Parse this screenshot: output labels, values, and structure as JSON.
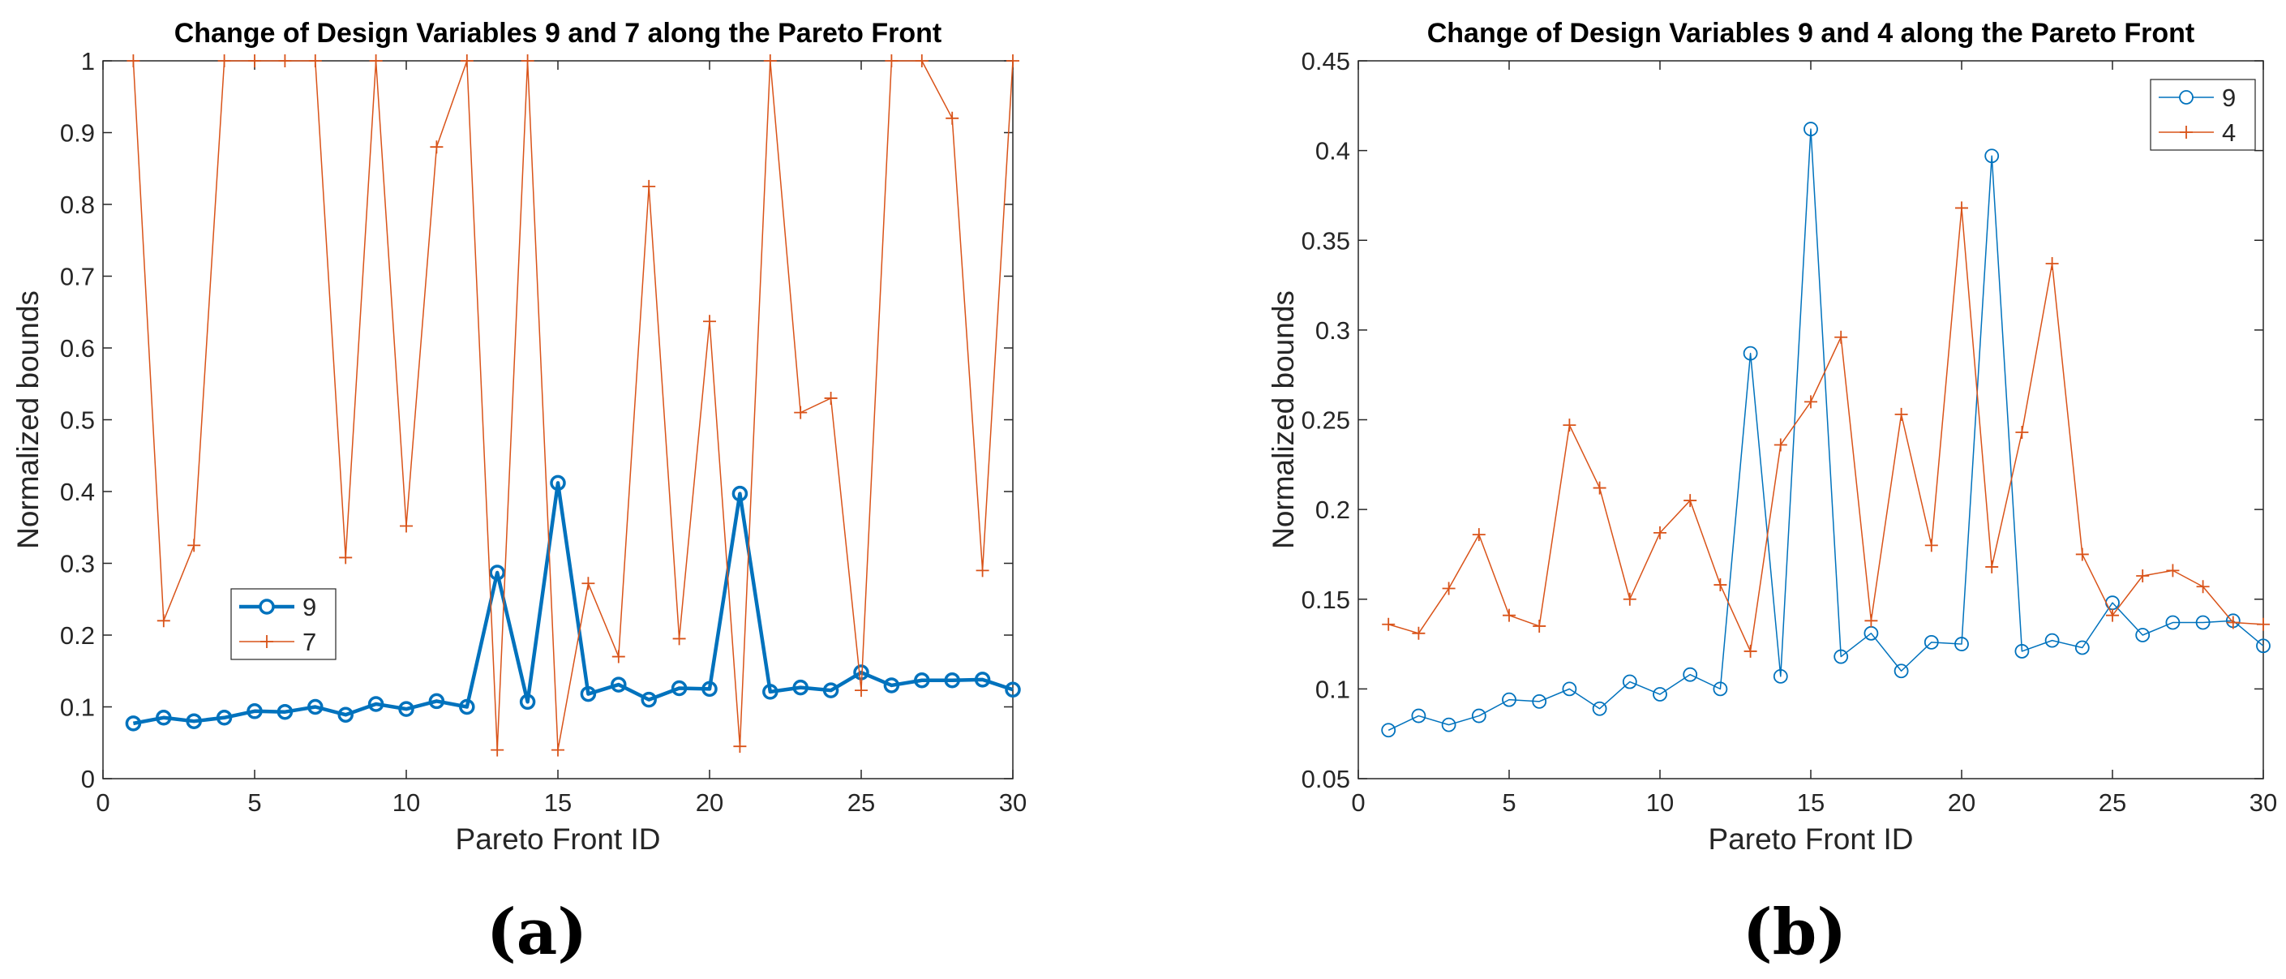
{
  "chart_data": [
    {
      "id": "a",
      "type": "line",
      "title": "Change of Design Variables 9 and 7 along the Pareto Front",
      "xlabel": "Pareto Front ID",
      "ylabel": "Normalized bounds",
      "caption": "(a)",
      "xlim": [
        0,
        30
      ],
      "ylim": [
        0,
        1
      ],
      "xticks": [
        0,
        5,
        10,
        15,
        20,
        25,
        30
      ],
      "yticks": [
        0,
        0.1,
        0.2,
        0.3,
        0.4,
        0.5,
        0.6,
        0.7,
        0.8,
        0.9,
        1
      ],
      "ytick_labels": [
        "0",
        "0.1",
        "0.2",
        "0.3",
        "0.4",
        "0.5",
        "0.6",
        "0.7",
        "0.8",
        "0.9",
        "1"
      ],
      "grid": false,
      "legend_position": "lower-left",
      "x": [
        1,
        2,
        3,
        4,
        5,
        6,
        7,
        8,
        9,
        10,
        11,
        12,
        13,
        14,
        15,
        16,
        17,
        18,
        19,
        20,
        21,
        22,
        23,
        24,
        25,
        26,
        27,
        28,
        29,
        30
      ],
      "series": [
        {
          "name": "9",
          "color": "#0072BD",
          "marker": "circle",
          "emphasis": "thick",
          "values": [
            0.077,
            0.085,
            0.08,
            0.085,
            0.094,
            0.093,
            0.1,
            0.089,
            0.104,
            0.097,
            0.108,
            0.1,
            0.287,
            0.107,
            0.412,
            0.118,
            0.131,
            0.11,
            0.126,
            0.125,
            0.397,
            0.121,
            0.127,
            0.123,
            0.148,
            0.13,
            0.137,
            0.137,
            0.138,
            0.124
          ]
        },
        {
          "name": "7",
          "color": "#D95319",
          "marker": "plus",
          "emphasis": "thin",
          "values": [
            1.0,
            0.22,
            0.325,
            1.0,
            1.0,
            1.0,
            1.0,
            0.308,
            1.0,
            0.352,
            0.88,
            1.0,
            0.04,
            1.0,
            0.04,
            0.272,
            0.17,
            0.825,
            0.195,
            0.637,
            0.045,
            1.0,
            0.51,
            0.53,
            0.123,
            1.0,
            1.0,
            0.92,
            0.29,
            1.0
          ]
        }
      ]
    },
    {
      "id": "b",
      "type": "line",
      "title": "Change of Design Variables 9 and 4 along the Pareto Front",
      "xlabel": "Pareto Front ID",
      "ylabel": "Normalized bounds",
      "caption": "(b)",
      "xlim": [
        0,
        30
      ],
      "ylim": [
        0.05,
        0.45
      ],
      "xticks": [
        0,
        5,
        10,
        15,
        20,
        25,
        30
      ],
      "yticks": [
        0.05,
        0.1,
        0.15,
        0.2,
        0.25,
        0.3,
        0.35,
        0.4,
        0.45
      ],
      "ytick_labels": [
        "0.05",
        "0.1",
        "0.15",
        "0.2",
        "0.25",
        "0.3",
        "0.35",
        "0.4",
        "0.45"
      ],
      "grid": false,
      "legend_position": "top-right",
      "x": [
        1,
        2,
        3,
        4,
        5,
        6,
        7,
        8,
        9,
        10,
        11,
        12,
        13,
        14,
        15,
        16,
        17,
        18,
        19,
        20,
        21,
        22,
        23,
        24,
        25,
        26,
        27,
        28,
        29,
        30
      ],
      "series": [
        {
          "name": "9",
          "color": "#0072BD",
          "marker": "circle",
          "emphasis": "thin",
          "values": [
            0.077,
            0.085,
            0.08,
            0.085,
            0.094,
            0.093,
            0.1,
            0.089,
            0.104,
            0.097,
            0.108,
            0.1,
            0.287,
            0.107,
            0.412,
            0.118,
            0.131,
            0.11,
            0.126,
            0.125,
            0.397,
            0.121,
            0.127,
            0.123,
            0.148,
            0.13,
            0.137,
            0.137,
            0.138,
            0.124
          ]
        },
        {
          "name": "4",
          "color": "#D95319",
          "marker": "plus",
          "emphasis": "thin",
          "values": [
            0.136,
            0.131,
            0.156,
            0.186,
            0.141,
            0.135,
            0.247,
            0.212,
            0.15,
            0.187,
            0.205,
            0.158,
            0.121,
            0.236,
            0.26,
            0.296,
            0.138,
            0.253,
            0.18,
            0.368,
            0.168,
            0.243,
            0.337,
            0.175,
            0.141,
            0.163,
            0.166,
            0.157,
            0.137,
            0.136
          ]
        }
      ]
    }
  ]
}
